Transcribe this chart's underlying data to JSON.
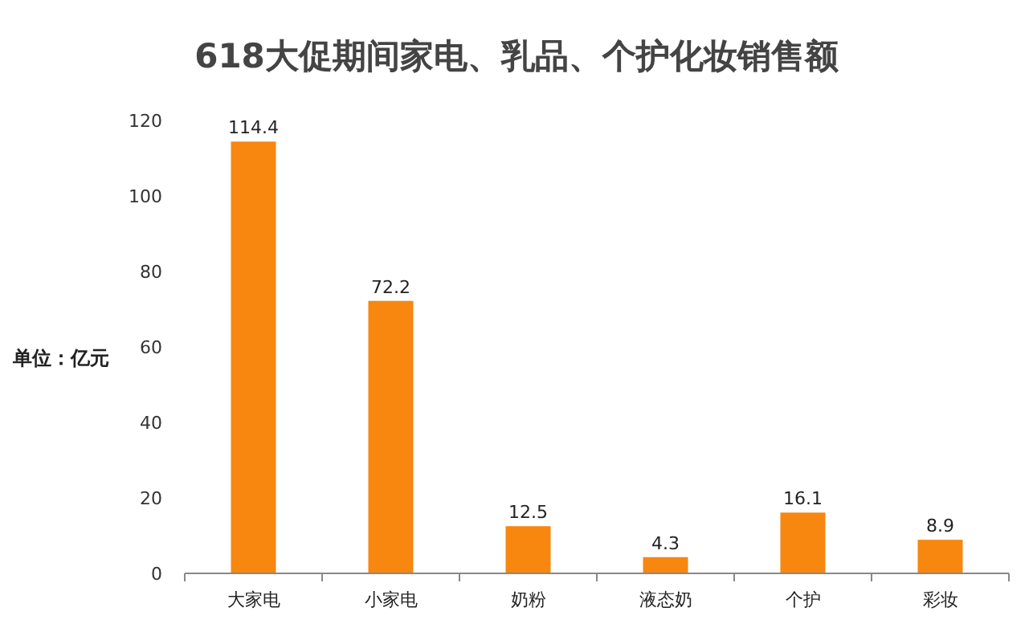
{
  "chart_data": {
    "type": "bar",
    "title": "618大促期间家电、乳品、个护化妆销售额",
    "ylabel": "单位：亿元",
    "categories": [
      "大家电",
      "小家电",
      "奶粉",
      "液态奶",
      "个护",
      "彩妆"
    ],
    "values": [
      114.4,
      72.2,
      12.5,
      4.3,
      16.1,
      8.9
    ],
    "color": "#f7870f",
    "ylim": [
      0,
      120
    ],
    "yticks": [
      0,
      20,
      40,
      60,
      80,
      100,
      120
    ],
    "data_labels": true,
    "grid": false
  }
}
